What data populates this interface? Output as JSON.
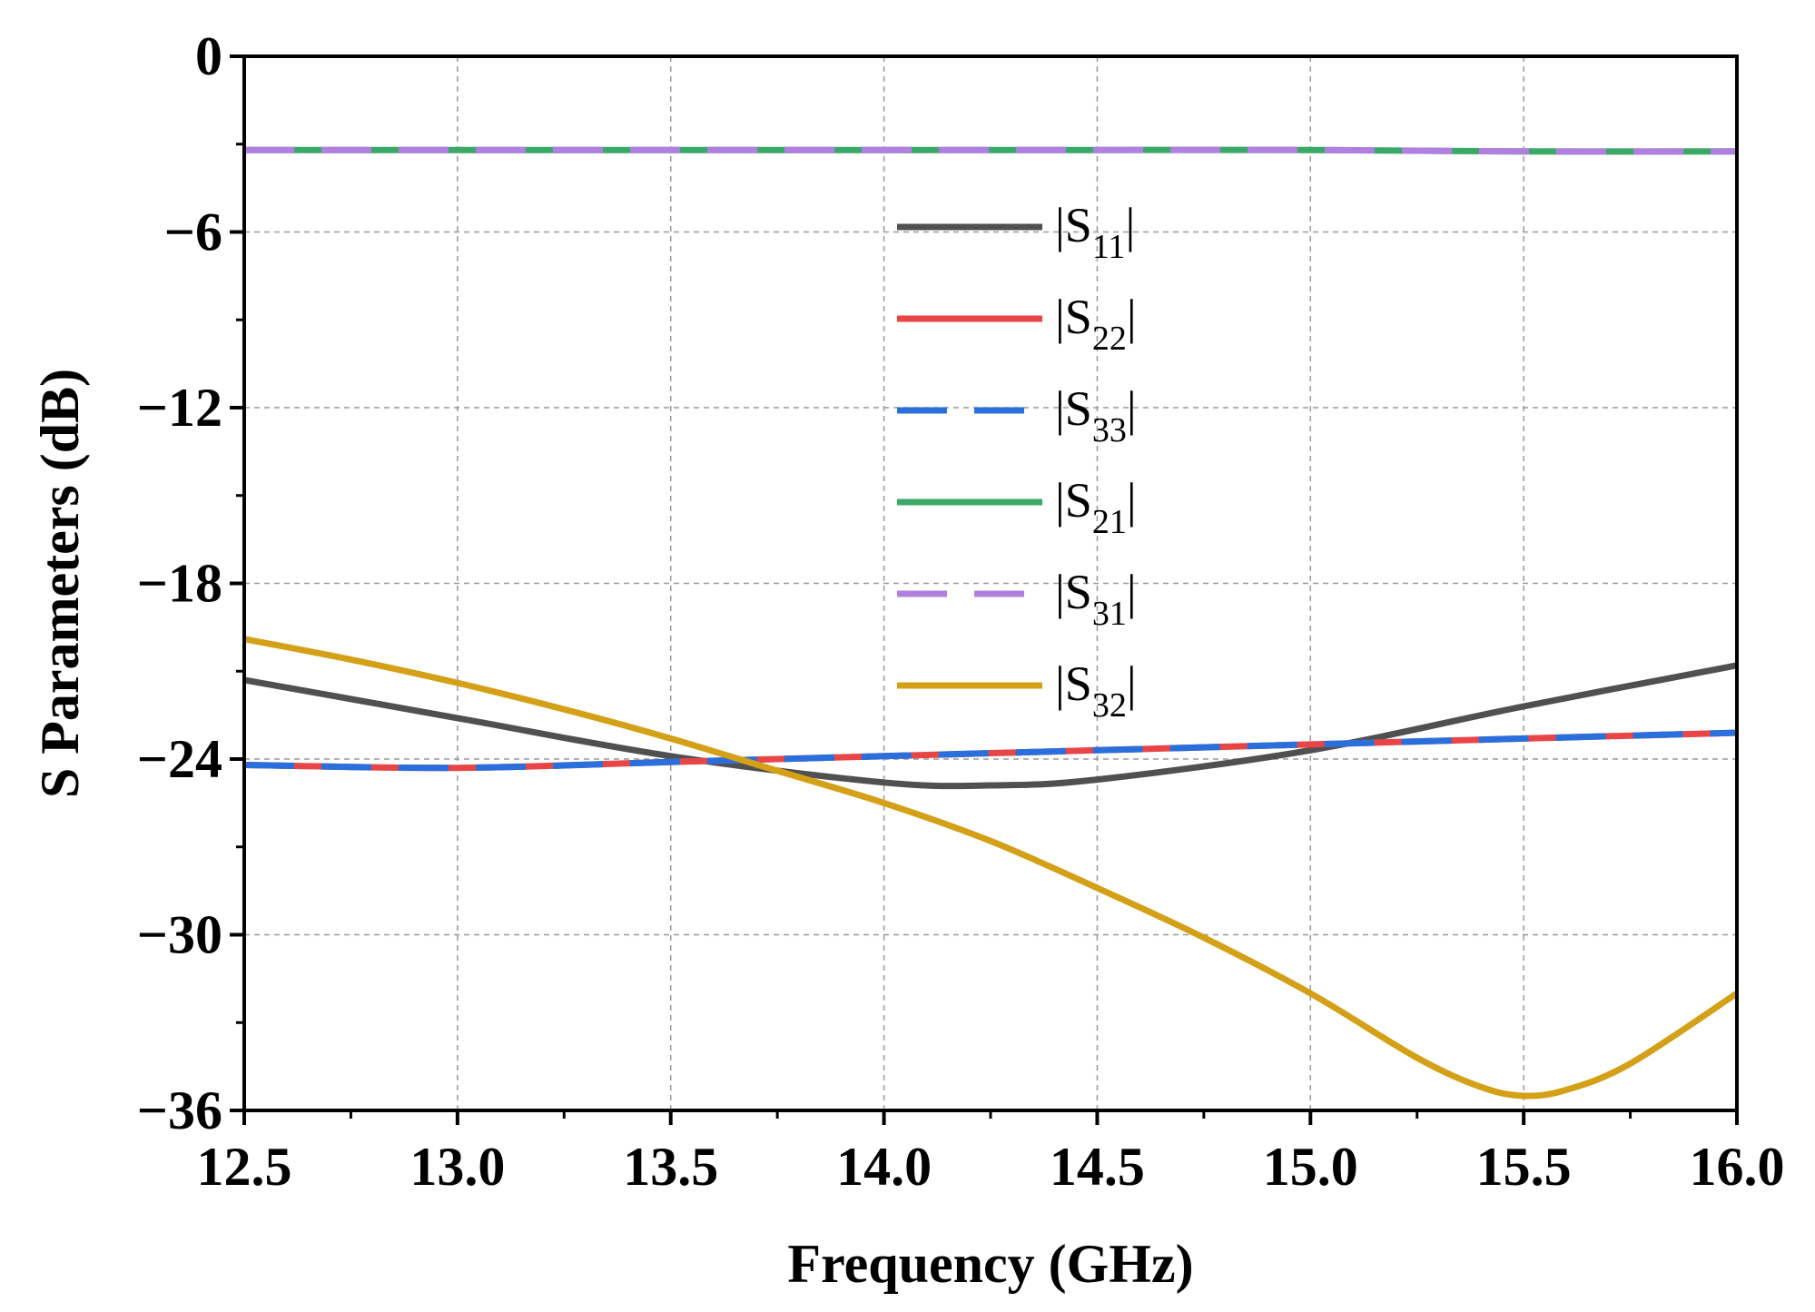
{
  "chart_data": {
    "type": "line",
    "title": "",
    "xlabel": "Frequency (GHz)",
    "ylabel": "S Parameters (dB)",
    "xlim": [
      12.5,
      16.0
    ],
    "ylim": [
      -36,
      0
    ],
    "xticks": [
      12.5,
      13.0,
      13.5,
      14.0,
      14.5,
      15.0,
      15.5,
      16.0
    ],
    "xtick_labels": [
      "12.5",
      "13.0",
      "13.5",
      "14.0",
      "14.5",
      "15.0",
      "15.5",
      "16.0"
    ],
    "yticks": [
      0,
      -6,
      -12,
      -18,
      -24,
      -30,
      -36
    ],
    "ytick_labels": [
      "0",
      "−6",
      "−12",
      "−18",
      "−24",
      "−30",
      "−36"
    ],
    "grid": true,
    "legend_position": "center",
    "series": [
      {
        "name": "|S11|",
        "label_main": "S",
        "label_sub": "11",
        "color": "#505050",
        "dash": "solid",
        "x": [
          12.5,
          13.0,
          13.5,
          14.0,
          14.25,
          14.5,
          15.0,
          15.5,
          16.0
        ],
        "y": [
          -21.3,
          -22.6,
          -23.9,
          -24.8,
          -24.9,
          -24.7,
          -23.7,
          -22.2,
          -20.8
        ]
      },
      {
        "name": "|S22|",
        "label_main": "S",
        "label_sub": "22",
        "color": "#e84646",
        "dash": "solid",
        "x": [
          12.5,
          13.0,
          13.5,
          14.0,
          14.5,
          15.0,
          15.5,
          16.0
        ],
        "y": [
          -24.2,
          -24.3,
          -24.1,
          -23.9,
          -23.7,
          -23.5,
          -23.3,
          -23.1
        ]
      },
      {
        "name": "|S33|",
        "label_main": "S",
        "label_sub": "33",
        "color": "#2a6fdc",
        "dash": "dashed",
        "x": [
          12.5,
          13.0,
          13.5,
          14.0,
          14.5,
          15.0,
          15.5,
          16.0
        ],
        "y": [
          -24.2,
          -24.3,
          -24.1,
          -23.9,
          -23.7,
          -23.5,
          -23.3,
          -23.1
        ]
      },
      {
        "name": "|S21|",
        "label_main": "S",
        "label_sub": "21",
        "color": "#3aa866",
        "dash": "solid",
        "x": [
          12.5,
          13.0,
          13.5,
          14.0,
          14.5,
          15.0,
          15.5,
          16.0
        ],
        "y": [
          -3.2,
          -3.2,
          -3.2,
          -3.2,
          -3.2,
          -3.2,
          -3.25,
          -3.25
        ]
      },
      {
        "name": "|S31|",
        "label_main": "S",
        "label_sub": "31",
        "color": "#b07fe0",
        "dash": "dashed",
        "x": [
          12.5,
          13.0,
          13.5,
          14.0,
          14.5,
          15.0,
          15.5,
          16.0
        ],
        "y": [
          -3.2,
          -3.2,
          -3.2,
          -3.2,
          -3.2,
          -3.2,
          -3.25,
          -3.25
        ]
      },
      {
        "name": "|S32|",
        "label_main": "S",
        "label_sub": "32",
        "color": "#d4a017",
        "dash": "solid",
        "x": [
          12.5,
          12.75,
          13.0,
          13.25,
          13.5,
          13.75,
          14.0,
          14.25,
          14.5,
          14.75,
          15.0,
          15.25,
          15.4,
          15.5,
          15.6,
          15.75,
          16.0
        ],
        "y": [
          -19.9,
          -20.6,
          -21.4,
          -22.3,
          -23.3,
          -24.4,
          -25.5,
          -26.8,
          -28.4,
          -30.1,
          -32.0,
          -34.2,
          -35.2,
          -35.5,
          -35.3,
          -34.4,
          -32.0
        ]
      }
    ]
  }
}
